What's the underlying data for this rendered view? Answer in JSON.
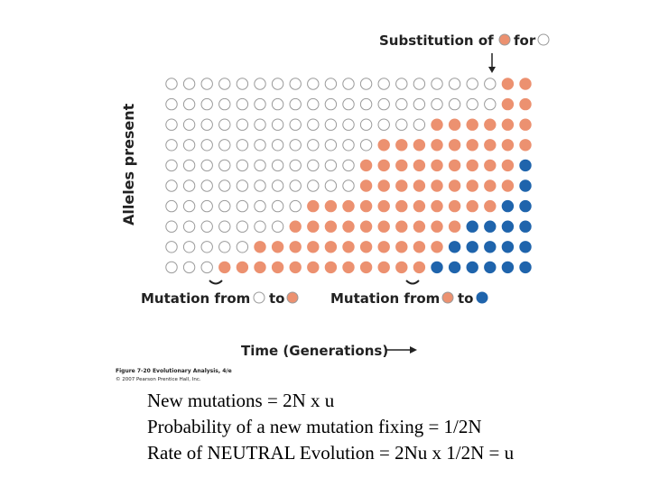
{
  "figure": {
    "top_label": "Substitution of",
    "top_label_for": "for",
    "y_axis_label": "Alleles present",
    "x_axis_label": "Time (Generations)",
    "mutation_label_1_prefix": "Mutation from",
    "mutation_label_1_to": "to",
    "mutation_label_2_prefix": "Mutation from",
    "mutation_label_2_to": "to",
    "caption_line_1": "Figure 7-20  Evolutionary Analysis, 4/e",
    "caption_line_2": "© 2007 Pearson Prentice Hall, Inc.",
    "colors": {
      "white_allele": "#ffffff",
      "orange_allele": "#ec9170",
      "blue_allele": "#1f64ac",
      "outline": "#9a9a9a"
    },
    "grid": {
      "rows": 10,
      "cols": 21,
      "orange_from_col_by_row": [
        19,
        19,
        15,
        12,
        11,
        11,
        8,
        7,
        5,
        3
      ],
      "blue_from_col_by_row": [
        null,
        null,
        null,
        null,
        20,
        20,
        19,
        17,
        16,
        15
      ]
    }
  },
  "notes": {
    "line_1": "New mutations = 2N x u",
    "line_2": "Probability of a new mutation fixing = 1/2N",
    "line_3": "Rate of NEUTRAL Evolution = 2Nu x 1/2N = u"
  }
}
